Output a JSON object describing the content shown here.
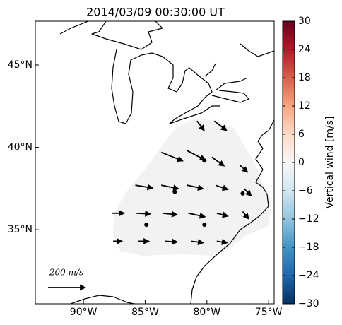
{
  "map": {
    "title": "2014/03/09 00:30:00 UT",
    "lonlim": [
      -93.9,
      -74.55
    ],
    "latlim": [
      30.5,
      47.66
    ],
    "lonticks": [
      {
        "value": -90,
        "label": "90°W"
      },
      {
        "value": -85,
        "label": "85°W"
      },
      {
        "value": -80,
        "label": "80°W"
      },
      {
        "value": -75,
        "label": "75°W"
      }
    ],
    "latticks": [
      {
        "value": 35,
        "label": "35°N"
      },
      {
        "value": 40,
        "label": "40°N"
      },
      {
        "value": 45,
        "label": "45°N"
      }
    ],
    "vectors": [
      {
        "lon": -80.8,
        "lat": 41.6,
        "u": 38,
        "v": -50
      },
      {
        "lon": -79.4,
        "lat": 41.6,
        "u": 65,
        "v": -50
      },
      {
        "lon": -83.7,
        "lat": 39.7,
        "u": 115,
        "v": -46
      },
      {
        "lon": -81.6,
        "lat": 39.8,
        "u": 96,
        "v": -50
      },
      {
        "lon": -79.6,
        "lat": 39.4,
        "u": 65,
        "v": -46
      },
      {
        "lon": -77.3,
        "lat": 38.9,
        "u": 38,
        "v": -35
      },
      {
        "lon": -85.8,
        "lat": 37.7,
        "u": 92,
        "v": -15
      },
      {
        "lon": -83.7,
        "lat": 37.7,
        "u": 92,
        "v": -19
      },
      {
        "lon": -81.6,
        "lat": 37.7,
        "u": 85,
        "v": -19
      },
      {
        "lon": -79.3,
        "lat": 37.7,
        "u": 65,
        "v": -23
      },
      {
        "lon": -77.0,
        "lat": 37.5,
        "u": 38,
        "v": -38
      },
      {
        "lon": -87.7,
        "lat": 36.0,
        "u": 65,
        "v": 0
      },
      {
        "lon": -85.7,
        "lat": 36.0,
        "u": 73,
        "v": -4
      },
      {
        "lon": -83.6,
        "lat": 36.0,
        "u": 77,
        "v": -8
      },
      {
        "lon": -81.5,
        "lat": 36.0,
        "u": 88,
        "v": -19
      },
      {
        "lon": -79.2,
        "lat": 36.0,
        "u": 58,
        "v": -15
      },
      {
        "lon": -77.1,
        "lat": 36.1,
        "u": 31,
        "v": -38
      },
      {
        "lon": -87.6,
        "lat": 34.3,
        "u": 46,
        "v": 0
      },
      {
        "lon": -85.6,
        "lat": 34.3,
        "u": 58,
        "v": 0
      },
      {
        "lon": -83.4,
        "lat": 34.3,
        "u": 65,
        "v": -4
      },
      {
        "lon": -81.3,
        "lat": 34.3,
        "u": 65,
        "v": -8
      },
      {
        "lon": -79.2,
        "lat": 34.3,
        "u": 54,
        "v": -8
      }
    ],
    "markers": [
      {
        "lon": -80.2,
        "lat": 39.2
      },
      {
        "lon": -82.6,
        "lat": 37.3
      },
      {
        "lon": -77.1,
        "lat": 37.2
      },
      {
        "lon": -84.9,
        "lat": 35.3
      },
      {
        "lon": -80.2,
        "lat": 35.3
      }
    ],
    "scale": {
      "value": 200,
      "label": "200 m/s"
    }
  },
  "colorbar": {
    "label": "Vertical wind [m/s]",
    "lim": [
      -30,
      30
    ],
    "ticks": [
      {
        "value": -30,
        "label": "−30"
      },
      {
        "value": -24,
        "label": "−24"
      },
      {
        "value": -18,
        "label": "−18"
      },
      {
        "value": -12,
        "label": "−12"
      },
      {
        "value": -6,
        "label": "−6"
      },
      0,
      6,
      12,
      18,
      24,
      30
    ]
  }
}
